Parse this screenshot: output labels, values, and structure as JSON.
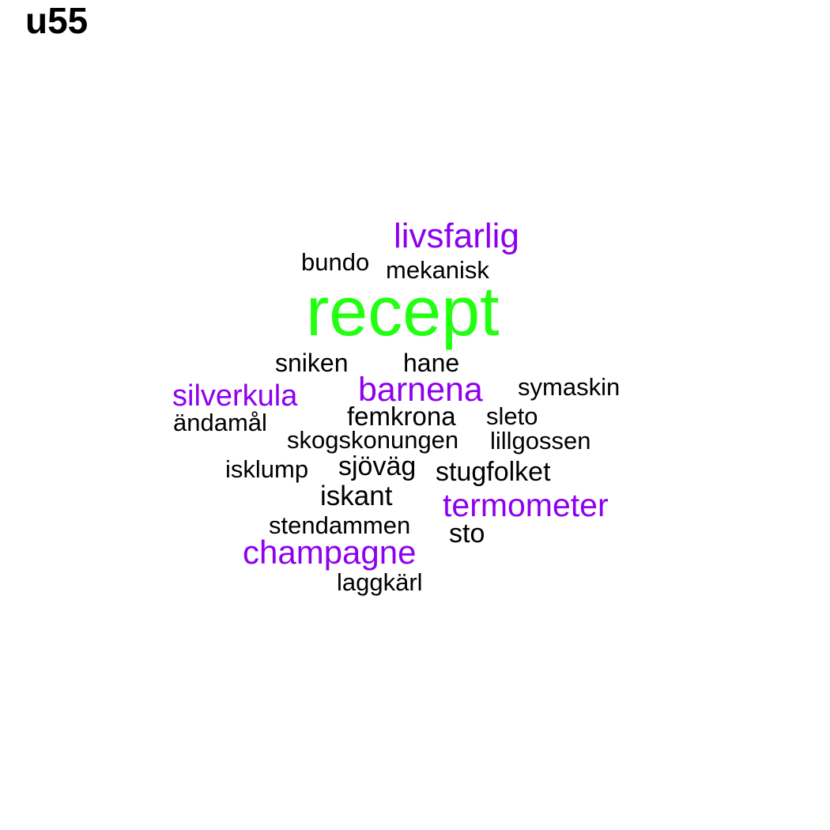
{
  "title": "u55",
  "colors": {
    "green": "#22ff11",
    "purple": "#8e00ee",
    "black": "#000000"
  },
  "words": {
    "livsfarlig": "livsfarlig",
    "bundo": "bundo",
    "mekanisk": "mekanisk",
    "recept": "recept",
    "sniken": "sniken",
    "hane": "hane",
    "silverkula": "silverkula",
    "barnena": "barnena",
    "symaskin": "symaskin",
    "andamal": "ändamål",
    "femkrona": "femkrona",
    "sleto": "sleto",
    "skogskonungen": "skogskonungen",
    "lillgossen": "lillgossen",
    "isklump": "isklump",
    "sjovag": "sjöväg",
    "stugfolket": "stugfolket",
    "iskant": "iskant",
    "termometer": "termometer",
    "stendammen": "stendammen",
    "sto": "sto",
    "champagne": "champagne",
    "laggkarl": "laggkärl"
  }
}
